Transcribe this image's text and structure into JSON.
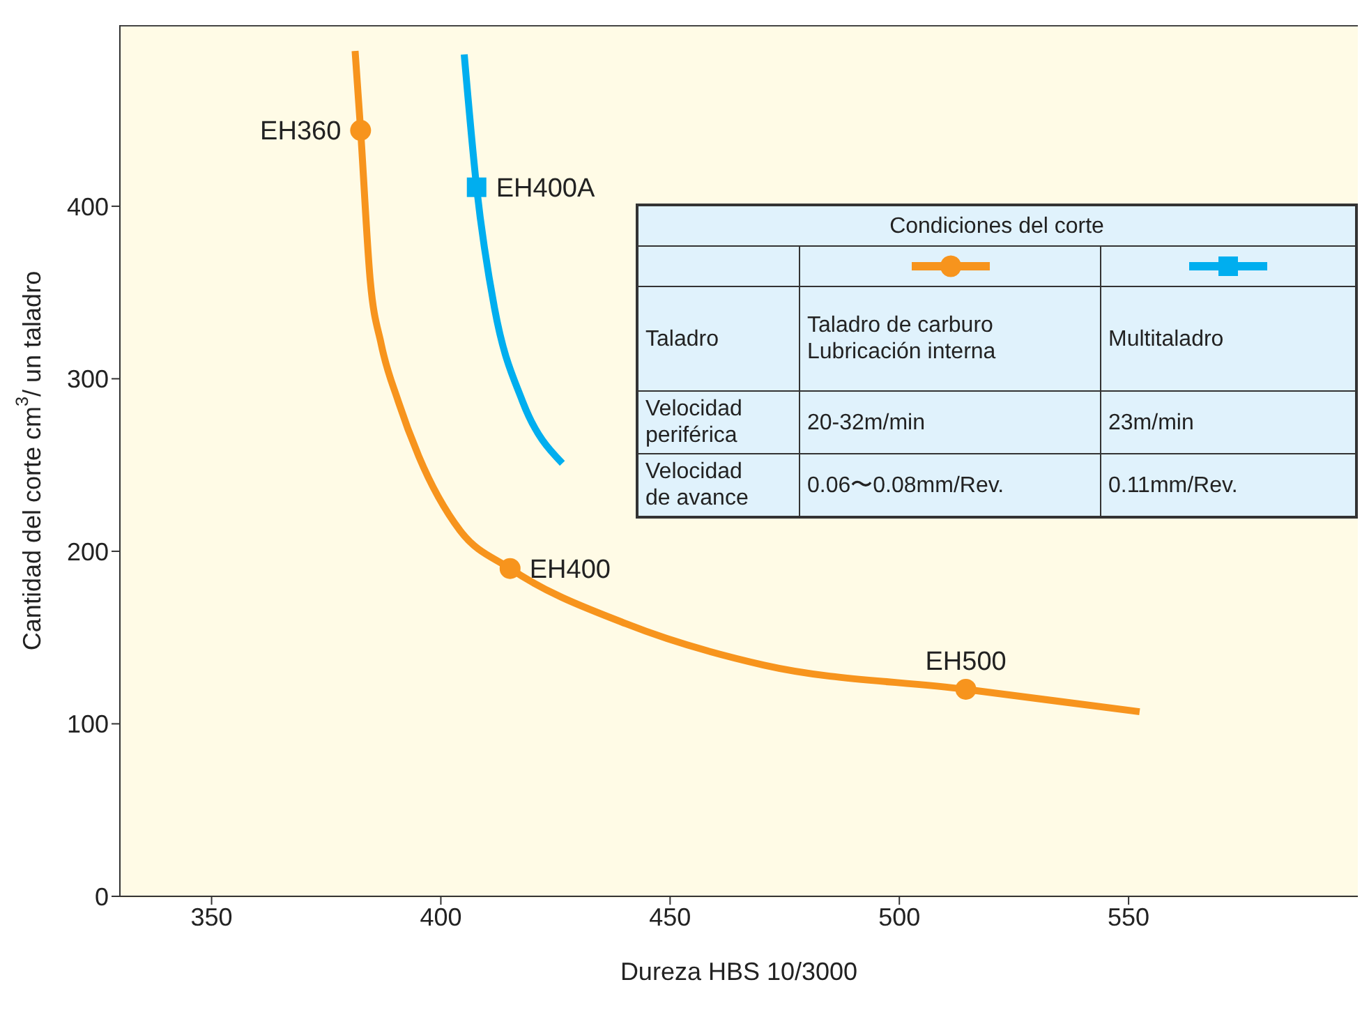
{
  "chart_data": {
    "type": "line",
    "xlabel": "Dureza  HBS 10/3000",
    "ylabel": "Cantidad del corte cm$^{3}$/ un taladro",
    "xlim": [
      330,
      600
    ],
    "xticks": [
      350,
      400,
      450,
      500,
      550
    ],
    "ylim": [
      0,
      505
    ],
    "yticks": [
      0,
      100,
      200,
      300,
      400
    ],
    "grid": false,
    "line_style": "solid",
    "series": [
      {
        "color": "#f7941d",
        "marker": "none",
        "x": [
          381.3,
          382.5,
          384.6,
          387,
          390.7,
          395.2,
          404.2,
          415.1,
          440.4,
          470.5,
          514.5,
          552.4
        ],
        "values": [
          490,
          444,
          357,
          320,
          287,
          255,
          212,
          190,
          158,
          134,
          120,
          107
        ]
      },
      {
        "color": "#00aeef",
        "marker": "none",
        "x": [
          405.1,
          407.8,
          411.7,
          417.8,
          426.5
        ],
        "values": [
          488,
          411,
          341,
          287,
          251
        ]
      },
      {
        "type": "scatter",
        "color": "#f7941d",
        "marker": "circle",
        "x": [
          382.5,
          415.1,
          514.5
        ],
        "values": [
          444,
          190,
          120
        ]
      },
      {
        "type": "scatter",
        "color": "#00aeef",
        "marker": "square",
        "x": [
          407.8
        ],
        "values": [
          411
        ]
      }
    ],
    "annotations": [
      {
        "text": "EH360",
        "x": 382.5,
        "y": 444
      },
      {
        "text": "EH400A",
        "x": 407.8,
        "y": 411
      },
      {
        "text": "EH400",
        "x": 415.1,
        "y": 190
      },
      {
        "text": "EH500",
        "x": 514.5,
        "y": 120
      },
      "Condiciones del corte",
      "Taladro",
      "Velocidad\nperiférica",
      "Velocidad\nde avance",
      "Taladro de carburo\nLubricación interna",
      "20-32m/min",
      "0.06〜0.08mm/Rev.",
      "Multitaladro",
      "23m/min",
      "0.11mm/Rev."
    ]
  }
}
